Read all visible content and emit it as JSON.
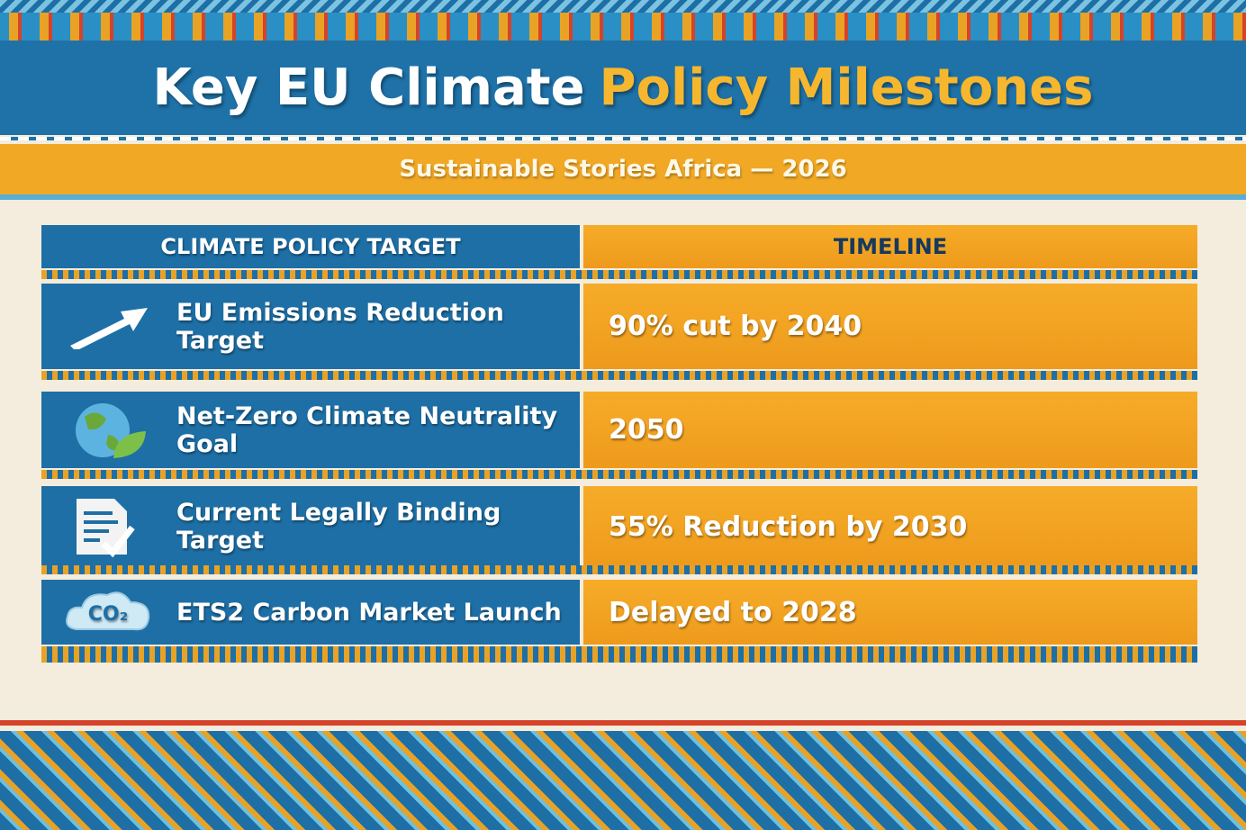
{
  "header": {
    "title_part1": "Key EU Climate",
    "title_part2": "Policy Milestones",
    "subtitle": "Sustainable Stories Africa — 2026"
  },
  "table": {
    "columns": [
      "CLIMATE POLICY TARGET",
      "TIMELINE"
    ],
    "rows": [
      [
        "EU Emissions Reduction Target",
        "90% cut by 2040"
      ],
      [
        "Net-Zero Climate Neutrality Goal",
        "2050"
      ],
      [
        "Current Legally Binding Target",
        "55% Reduction by 2030"
      ],
      [
        "ETS2 Carbon Market Launch",
        "Delayed to 2028"
      ]
    ],
    "icon_label": "CO₂"
  }
}
